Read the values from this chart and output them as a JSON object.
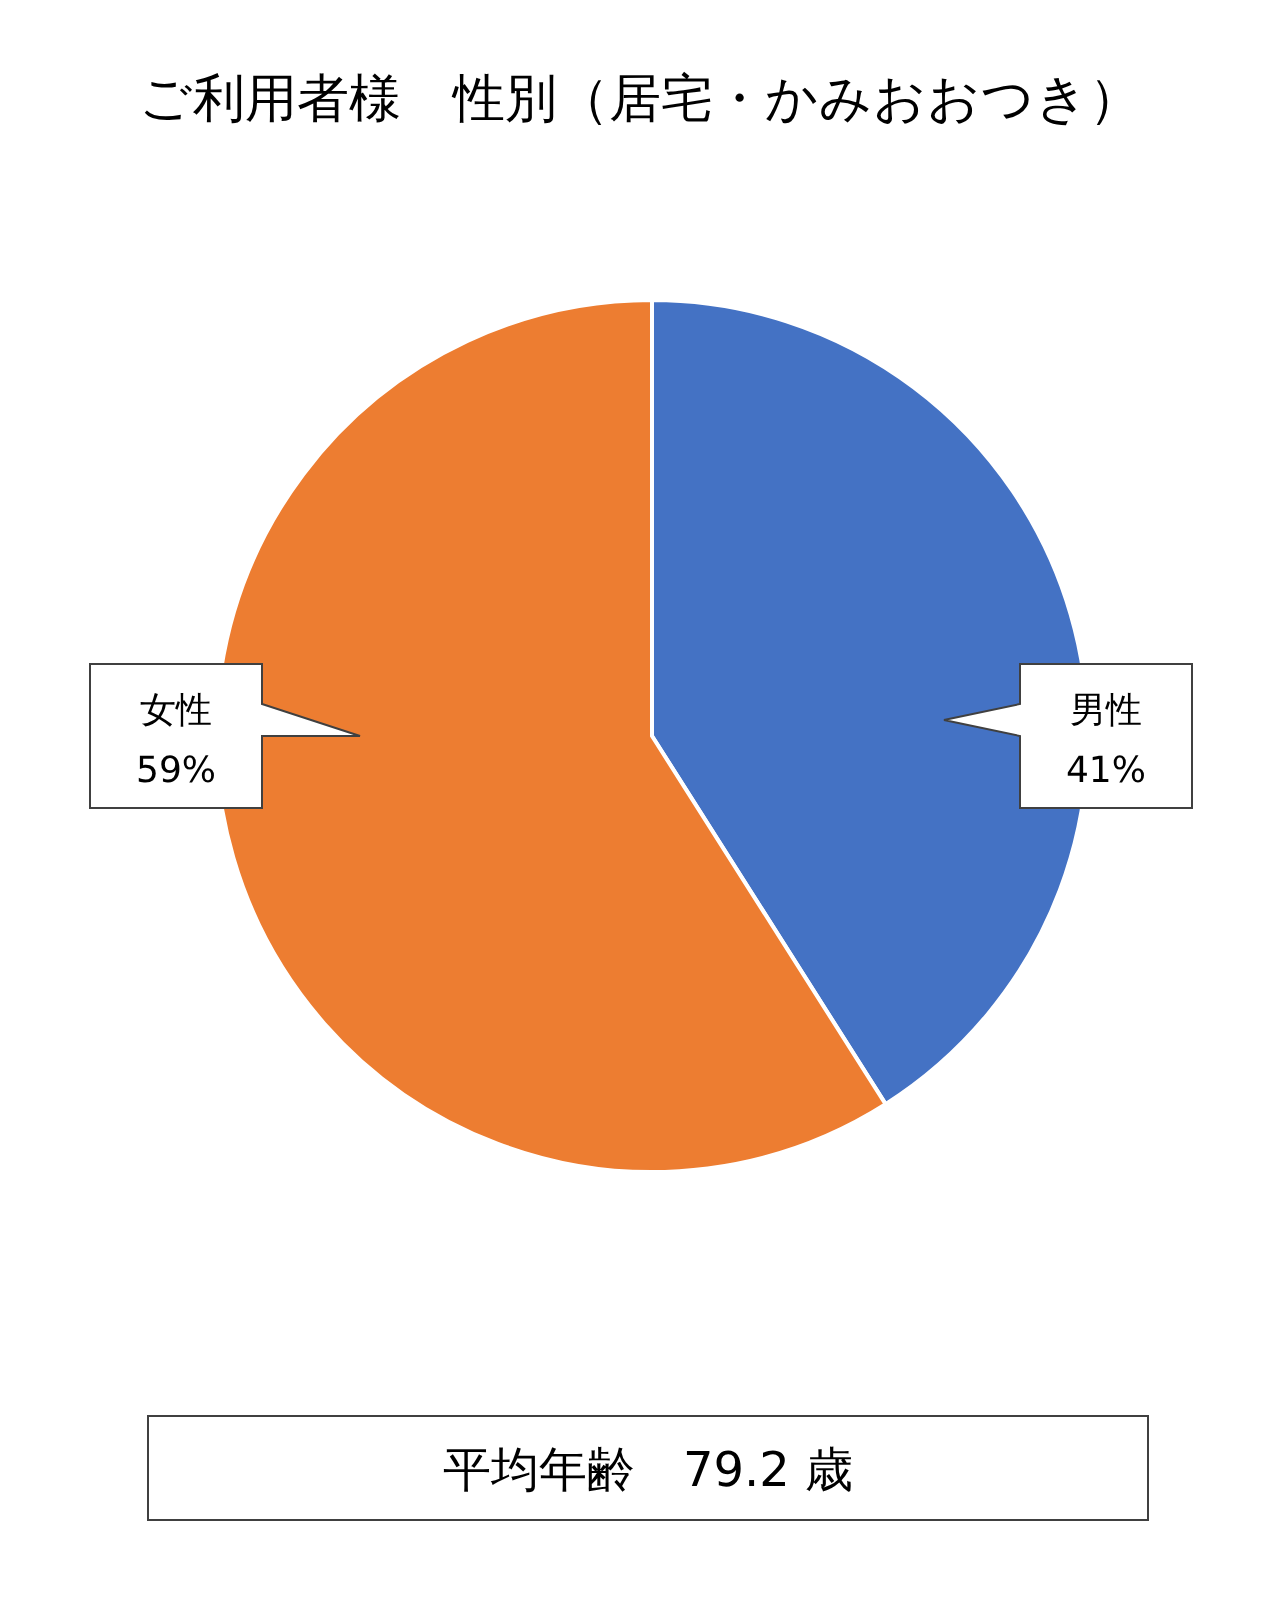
{
  "chart_data": {
    "type": "pie",
    "title": "ご利用者様　性別（居宅・かみおおつき）",
    "categories": [
      "男性",
      "女性"
    ],
    "values": [
      41,
      59
    ],
    "colors": [
      "#4472c4",
      "#ed7d31"
    ],
    "value_labels": [
      "41%",
      "59%"
    ],
    "annotations": [
      "平均年齢　79.2 歳"
    ]
  }
}
